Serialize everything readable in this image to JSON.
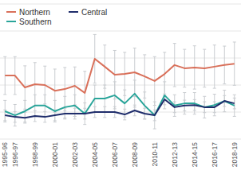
{
  "chart_data": {
    "type": "line",
    "categories": [
      "1995-96",
      "1996-97",
      null,
      "1998-99",
      null,
      "2000-01",
      null,
      "2002-03",
      null,
      "2004-05",
      null,
      "2006-07",
      null,
      "2008-09",
      null,
      "2010-11",
      null,
      "2012-13",
      null,
      "2014-15",
      null,
      "2016-17",
      null,
      "2018-19"
    ],
    "series": [
      {
        "name": "Northern",
        "color": "#d9705a",
        "values": [
          23.5,
          23.5,
          19.1,
          20.3,
          20.0,
          17.9,
          18.5,
          19.7,
          17.1,
          29.7,
          26.8,
          23.8,
          24.1,
          24.7,
          23.2,
          21.5,
          24.1,
          27.4,
          26.2,
          26.5,
          26.2,
          26.8,
          27.4,
          27.9
        ],
        "errors": [
          7,
          7,
          8,
          8,
          7,
          8,
          8,
          7,
          8,
          9,
          8,
          9,
          8,
          9,
          8,
          9,
          8,
          8,
          7,
          8,
          7,
          8,
          7,
          8
        ]
      },
      {
        "name": "Central",
        "color": "#1f2d6b",
        "values": [
          8.8,
          8.2,
          7.9,
          8.5,
          8.2,
          8.8,
          9.4,
          9.4,
          9.4,
          10.0,
          10.0,
          10.0,
          9.1,
          10.6,
          9.4,
          8.8,
          14.7,
          11.8,
          12.4,
          12.6,
          11.8,
          11.8,
          14.1,
          13.2
        ],
        "errors": [
          2,
          2,
          2,
          2,
          2,
          2,
          2,
          2,
          2,
          2,
          2,
          2,
          2,
          2,
          2,
          2,
          2,
          2,
          2,
          2,
          2,
          2,
          2,
          2
        ]
      },
      {
        "name": "Southern",
        "color": "#2aa59a",
        "values": [
          10.3,
          8.8,
          10.3,
          12.4,
          12.4,
          10.3,
          11.8,
          12.4,
          9.4,
          15.0,
          15.0,
          16.2,
          13.2,
          16.8,
          12.4,
          8.8,
          16.2,
          12.4,
          13.2,
          13.2,
          11.8,
          12.6,
          14.1,
          12.4
        ],
        "errors": [
          4,
          4,
          4,
          4,
          4,
          4,
          4,
          4,
          4,
          5,
          5,
          5,
          5,
          5,
          5,
          5,
          5,
          4,
          4,
          4,
          4,
          4,
          4,
          4
        ]
      }
    ],
    "ylim": [
      0,
      50
    ],
    "yticks": [
      0,
      10,
      20,
      30,
      40,
      50
    ],
    "grid": true,
    "legend": "upper left",
    "tick_labels": "x"
  }
}
